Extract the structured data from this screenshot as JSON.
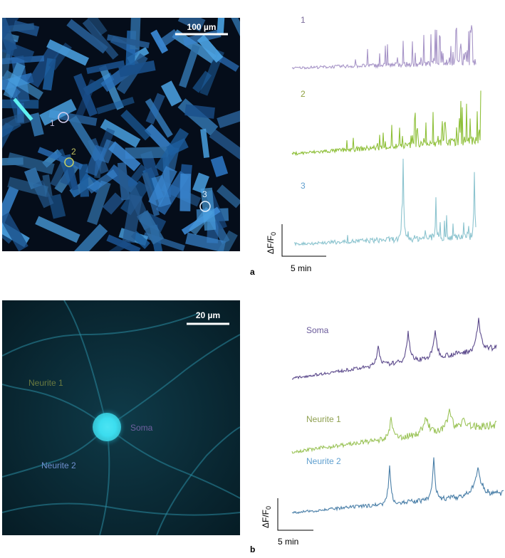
{
  "panel_a": {
    "label": "a",
    "image": {
      "scale_bar": "100 µm",
      "rois": [
        "1",
        "2",
        "3"
      ]
    },
    "traces": [
      "1",
      "2",
      "3"
    ],
    "y_scale": "ΔF/F",
    "y_scale_sub": "0",
    "x_scale": "5 min"
  },
  "panel_b": {
    "label": "b",
    "image": {
      "scale_bar": "20 µm",
      "regions": [
        "Neurite 1",
        "Soma",
        "Neurite 2"
      ]
    },
    "traces": [
      "Soma",
      "Neurite 1",
      "Neurite 2"
    ],
    "y_scale": "ΔF/F",
    "y_scale_sub": "0",
    "x_scale": "5 min"
  }
}
